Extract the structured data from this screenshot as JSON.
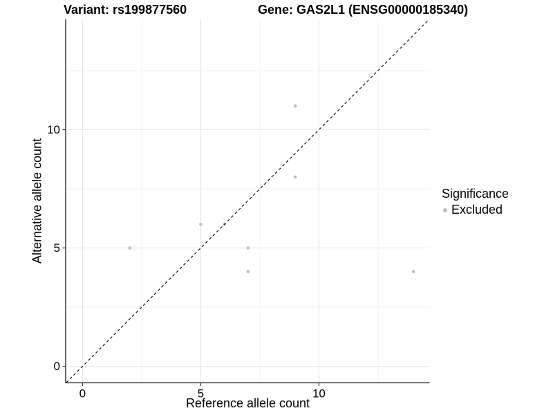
{
  "header": {
    "title_left": "Variant: rs199877560",
    "title_right": "Gene: GAS2L1 (ENSG00000185340)"
  },
  "chart_data": {
    "type": "scatter",
    "xlabel": "Reference allele count",
    "ylabel": "Alternative allele count",
    "x_ticks": [
      0,
      5,
      10
    ],
    "y_ticks": [
      0,
      5,
      10
    ],
    "x_minor_ticks": [
      2.5,
      7.5,
      12.5
    ],
    "y_minor_ticks": [
      2.5,
      7.5,
      12.5
    ],
    "xlim": [
      -0.71,
      14.68
    ],
    "ylim": [
      -0.7,
      14.66
    ],
    "grid": true,
    "legend_position": "right",
    "identity_line": {
      "style": "dashed",
      "equation": "y = x",
      "from": [
        -1,
        -1
      ],
      "to": [
        15.5,
        15.5
      ]
    },
    "series": [
      {
        "name": "Excluded",
        "color": "#bebebe",
        "points": [
          {
            "x": 2,
            "y": 5
          },
          {
            "x": 5,
            "y": 6
          },
          {
            "x": 6,
            "y": 6
          },
          {
            "x": 7,
            "y": 5
          },
          {
            "x": 7,
            "y": 4
          },
          {
            "x": 9,
            "y": 11
          },
          {
            "x": 9,
            "y": 8
          },
          {
            "x": 14,
            "y": 4
          }
        ]
      }
    ]
  },
  "legend": {
    "title": "Significance",
    "items": [
      {
        "label": "Excluded",
        "color": "#bebebe"
      }
    ]
  },
  "colors": {
    "grid_major": "#e6e6e6",
    "grid_minor": "#f1f1f1",
    "axis": "#1a1a1a",
    "tick": "#333333",
    "tick_label": "#000000",
    "point": "#bebebe",
    "identity_line": "#000000"
  }
}
